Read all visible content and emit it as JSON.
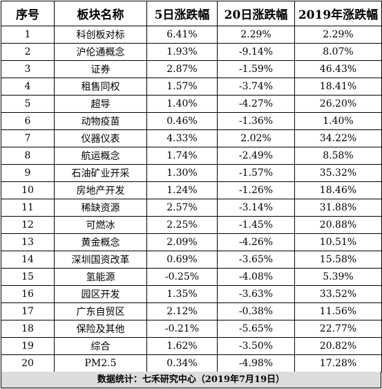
{
  "table": {
    "headers": [
      "序号",
      "板块名称",
      "5日涨跌幅",
      "20日涨跌幅",
      "2019年涨跌幅"
    ],
    "rows": [
      [
        "1",
        "科创板对标",
        "6.41%",
        "2.29%",
        "2.29%"
      ],
      [
        "2",
        "沪伦通概念",
        "1.93%",
        "-9.14%",
        "8.07%"
      ],
      [
        "3",
        "证券",
        "2.87%",
        "-1.59%",
        "46.43%"
      ],
      [
        "4",
        "租售同权",
        "1.57%",
        "-3.74%",
        "18.41%"
      ],
      [
        "5",
        "超导",
        "1.40%",
        "-4.27%",
        "26.20%"
      ],
      [
        "6",
        "动物疫苗",
        "0.46%",
        "-1.36%",
        "1.40%"
      ],
      [
        "7",
        "仪器仪表",
        "4.33%",
        "2.02%",
        "34.22%"
      ],
      [
        "8",
        "航运概念",
        "1.74%",
        "-2.49%",
        "8.58%"
      ],
      [
        "9",
        "石油矿业开采",
        "1.30%",
        "-1.57%",
        "35.32%"
      ],
      [
        "10",
        "房地产开发",
        "1.24%",
        "-1.26%",
        "18.46%"
      ],
      [
        "11",
        "稀缺资源",
        "2.57%",
        "-3.14%",
        "31.88%"
      ],
      [
        "12",
        "可燃冰",
        "2.25%",
        "-1.45%",
        "20.88%"
      ],
      [
        "13",
        "黄金概念",
        "2.09%",
        "-4.26%",
        "10.51%"
      ],
      [
        "14",
        "深圳国资改革",
        "0.69%",
        "-3.65%",
        "15.58%"
      ],
      [
        "15",
        "氢能源",
        "-0.25%",
        "-4.08%",
        "5.39%"
      ],
      [
        "16",
        "园区开发",
        "1.35%",
        "-3.63%",
        "33.52%"
      ],
      [
        "17",
        "广东自贸区",
        "2.12%",
        "-0.38%",
        "11.56%"
      ],
      [
        "18",
        "保险及其他",
        "-0.21%",
        "-5.65%",
        "22.77%"
      ],
      [
        "19",
        "综合",
        "1.62%",
        "-3.50%",
        "20.82%"
      ],
      [
        "20",
        "PM2.5",
        "0.34%",
        "-4.98%",
        "17.28%"
      ]
    ]
  },
  "footer": {
    "text": "数据统计：七禾研究中心（2019年7月19日）"
  },
  "colors": {
    "grid": "#000000",
    "footer_background": "#dcdcdc"
  }
}
